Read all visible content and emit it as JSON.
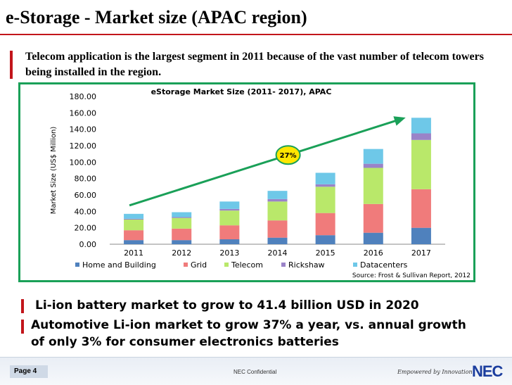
{
  "slide": {
    "title": "e-Storage - Market size (APAC region)",
    "intro": "Telecom application is the largest segment in 2011 because of the vast number of telecom towers being installed in the region.",
    "bullets": [
      "Li-ion battery market to grow to 41.4 billion USD in 2020",
      "Automotive Li-ion market to grow 37% a year, vs. annual growth of only  3% for consumer electronics batteries"
    ]
  },
  "footer": {
    "page": "Page 4",
    "confidential": "NEC Confidential",
    "tagline": "Empowered by Innovation",
    "logo": "NEC"
  },
  "colors": {
    "accent_red": "#c2151b",
    "chart_border": "#1aa058",
    "trend_arrow": "#1aa058",
    "badge_fill": "#ffe600"
  },
  "chart_data": {
    "type": "bar",
    "stacked": true,
    "title": "eStorage Market Size (2011- 2017), APAC",
    "ylabel": "Market Size (US$ Million)",
    "xlabel": "",
    "ylim": [
      0,
      180
    ],
    "yticks": [
      "0.00",
      "20.00",
      "40.00",
      "60.00",
      "80.00",
      "100.00",
      "120.00",
      "140.00",
      "160.00",
      "180.00"
    ],
    "categories": [
      "2011",
      "2012",
      "2013",
      "2014",
      "2015",
      "2016",
      "2017"
    ],
    "series": [
      {
        "name": "Home and Building",
        "color": "#4f81bd",
        "values": [
          5,
          5,
          6,
          8,
          11,
          14,
          20
        ]
      },
      {
        "name": "Grid",
        "color": "#f07b7b",
        "values": [
          12,
          14,
          17,
          21,
          27,
          35,
          47
        ]
      },
      {
        "name": "Telecom",
        "color": "#b9e86a",
        "values": [
          13,
          13,
          18,
          23,
          32,
          44,
          60
        ]
      },
      {
        "name": "Rickshaw",
        "color": "#9a83c8",
        "values": [
          1,
          1,
          2,
          3,
          3,
          5,
          8
        ]
      },
      {
        "name": "Datacenters",
        "color": "#6ec8e8",
        "values": [
          6,
          6,
          9,
          10,
          14,
          18,
          19
        ]
      }
    ],
    "annotation": "27%",
    "source": "Source: Frost & Sullivan Report, 2012",
    "grid": false,
    "legend_position": "bottom"
  }
}
